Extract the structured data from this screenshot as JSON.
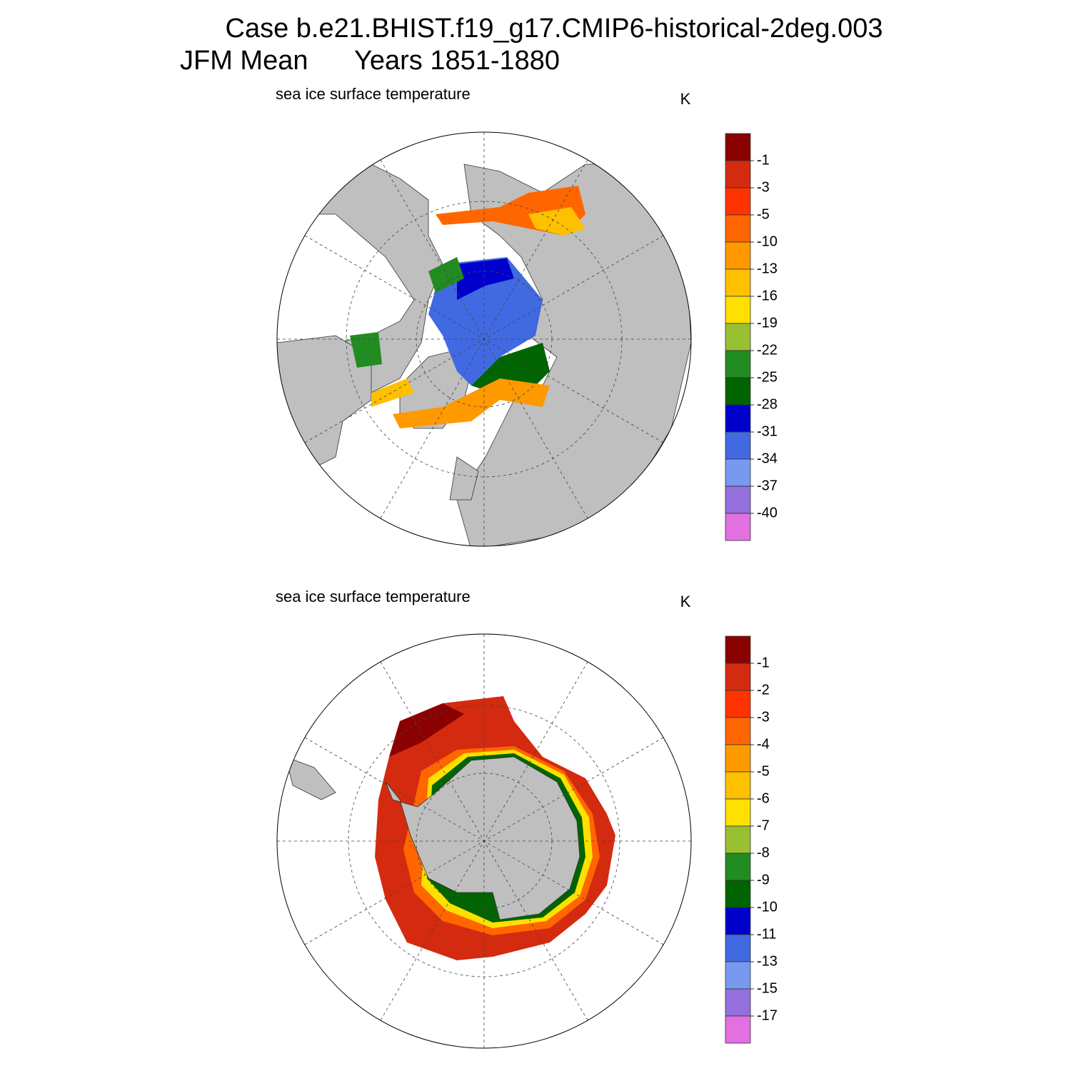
{
  "title": {
    "line1": "Case b.e21.BHIST.f19_g17.CMIP6-historical-2deg.003",
    "season": "JFM Mean",
    "years": "Years 1851-1880"
  },
  "panels": [
    {
      "subtitle": "sea ice surface temperature",
      "units": "K",
      "colorbar": {
        "colors": [
          "#8b0000",
          "#d42a0f",
          "#ff3300",
          "#ff6600",
          "#ff9900",
          "#ffc000",
          "#ffe000",
          "#99bf33",
          "#228b22",
          "#006400",
          "#0000cd",
          "#4169e1",
          "#7799f0",
          "#9370db",
          "#e370e0"
        ],
        "levels": [
          -1,
          -3,
          -5,
          -10,
          -13,
          -16,
          -19,
          -22,
          -25,
          -28,
          -31,
          -34,
          -37,
          -40
        ]
      }
    },
    {
      "subtitle": "sea ice surface temperature",
      "units": "K",
      "colorbar": {
        "colors": [
          "#8b0000",
          "#d42a0f",
          "#ff3300",
          "#ff6600",
          "#ff9900",
          "#ffc000",
          "#ffe000",
          "#99bf33",
          "#228b22",
          "#006400",
          "#0000cd",
          "#4169e1",
          "#7799f0",
          "#9370db",
          "#e370e0"
        ],
        "levels": [
          -1,
          -2,
          -3,
          -4,
          -5,
          -6,
          -7,
          -8,
          -9,
          -10,
          -11,
          -13,
          -15,
          -17
        ]
      }
    }
  ]
}
